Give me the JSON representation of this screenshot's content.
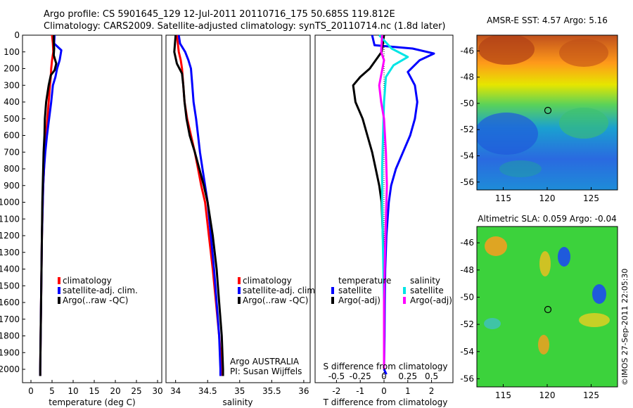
{
  "header": {
    "line1": "Argo profile: CS 5901645_129 12-Jul-2011 20110716_175 50.685S 119.812E",
    "line2": "Climatology: CARS2009. Satellite-adjusted climatology: synTS_20110714.nc (1.8d later)"
  },
  "colors": {
    "climatology": "#ff0000",
    "satellite": "#0000ff",
    "argo": "#000000",
    "sat_salinity": "#00e5e5",
    "argo_salinity": "#ff00ff"
  },
  "depth_ticks": [
    0,
    100,
    200,
    300,
    400,
    500,
    600,
    700,
    800,
    900,
    1000,
    1100,
    1200,
    1300,
    1400,
    1500,
    1600,
    1700,
    1800,
    1900,
    2000
  ],
  "chart_data": [
    {
      "type": "line",
      "xlabel": "temperature (deg C)",
      "ylabel": "",
      "xlim": [
        -2,
        31
      ],
      "ylim": [
        2080,
        0
      ],
      "x_ticks": [
        "0",
        "5",
        "10",
        "15",
        "20",
        "25",
        "30"
      ],
      "legend": [
        "climatology",
        "satellite-adj. clim.",
        "Argo(..raw -QC)"
      ],
      "legend_position": "lower-middle",
      "series": [
        {
          "name": "climatology",
          "color": "#ff0000",
          "points": [
            [
              5,
              0
            ],
            [
              5.2,
              50
            ],
            [
              5.3,
              100
            ],
            [
              5.0,
              150
            ],
            [
              4.8,
              200
            ],
            [
              4.7,
              250
            ],
            [
              4.5,
              300
            ],
            [
              4.2,
              400
            ],
            [
              3.9,
              500
            ],
            [
              3.6,
              600
            ],
            [
              3.3,
              700
            ],
            [
              3.1,
              800
            ],
            [
              2.9,
              900
            ],
            [
              2.8,
              1000
            ],
            [
              2.7,
              1100
            ],
            [
              2.6,
              1200
            ],
            [
              2.5,
              1400
            ],
            [
              2.4,
              1600
            ],
            [
              2.3,
              1800
            ],
            [
              2.2,
              2000
            ],
            [
              2.2,
              2040
            ]
          ]
        },
        {
          "name": "satellite-adj. clim.",
          "color": "#0000ff",
          "points": [
            [
              5.6,
              0
            ],
            [
              5.5,
              50
            ],
            [
              7.2,
              90
            ],
            [
              6.8,
              150
            ],
            [
              6.2,
              200
            ],
            [
              5.8,
              250
            ],
            [
              5.2,
              300
            ],
            [
              4.8,
              400
            ],
            [
              4.3,
              500
            ],
            [
              3.8,
              600
            ],
            [
              3.4,
              700
            ],
            [
              3.1,
              800
            ],
            [
              2.9,
              900
            ],
            [
              2.8,
              1000
            ],
            [
              2.7,
              1100
            ],
            [
              2.6,
              1200
            ],
            [
              2.5,
              1400
            ],
            [
              2.4,
              1600
            ],
            [
              2.3,
              1800
            ],
            [
              2.2,
              2000
            ],
            [
              2.2,
              2040
            ]
          ]
        },
        {
          "name": "Argo(..raw -QC)",
          "color": "#000000",
          "points": [
            [
              5.4,
              0
            ],
            [
              5.4,
              40
            ],
            [
              5.5,
              80
            ],
            [
              5.4,
              120
            ],
            [
              6.0,
              170
            ],
            [
              5.6,
              210
            ],
            [
              4.7,
              240
            ],
            [
              4.2,
              300
            ],
            [
              3.6,
              400
            ],
            [
              3.3,
              500
            ],
            [
              3.2,
              600
            ],
            [
              3.0,
              700
            ],
            [
              2.9,
              800
            ],
            [
              2.8,
              900
            ],
            [
              2.7,
              1000
            ],
            [
              2.6,
              1200
            ],
            [
              2.5,
              1400
            ],
            [
              2.4,
              1600
            ],
            [
              2.3,
              1800
            ],
            [
              2.2,
              2000
            ],
            [
              2.2,
              2040
            ]
          ]
        }
      ]
    },
    {
      "type": "line",
      "xlabel": "salinity",
      "xlim": [
        33.85,
        36.1
      ],
      "ylim": [
        2080,
        0
      ],
      "x_ticks": [
        "34",
        "34.5",
        "35",
        "35.5",
        "36"
      ],
      "legend": [
        "climatology",
        "satellite-adj. clim.",
        "Argo(..raw -QC)"
      ],
      "legend_position": "lower-right",
      "annotations": [
        "Argo AUSTRALIA",
        "PI: Susan Wijffels"
      ],
      "series": [
        {
          "name": "climatology",
          "color": "#ff0000",
          "points": [
            [
              34.02,
              0
            ],
            [
              34.05,
              100
            ],
            [
              34.08,
              150
            ],
            [
              34.1,
              200
            ],
            [
              34.12,
              300
            ],
            [
              34.14,
              400
            ],
            [
              34.18,
              500
            ],
            [
              34.24,
              600
            ],
            [
              34.3,
              700
            ],
            [
              34.35,
              800
            ],
            [
              34.4,
              900
            ],
            [
              34.46,
              1000
            ],
            [
              34.52,
              1200
            ],
            [
              34.58,
              1400
            ],
            [
              34.63,
              1600
            ],
            [
              34.68,
              1800
            ],
            [
              34.72,
              2000
            ],
            [
              34.72,
              2040
            ]
          ]
        },
        {
          "name": "satellite-adj. clim.",
          "color": "#0000ff",
          "points": [
            [
              34.05,
              0
            ],
            [
              34.07,
              50
            ],
            [
              34.15,
              100
            ],
            [
              34.2,
              150
            ],
            [
              34.24,
              200
            ],
            [
              34.26,
              300
            ],
            [
              34.28,
              400
            ],
            [
              34.32,
              500
            ],
            [
              34.35,
              600
            ],
            [
              34.38,
              700
            ],
            [
              34.42,
              800
            ],
            [
              34.46,
              900
            ],
            [
              34.5,
              1000
            ],
            [
              34.55,
              1200
            ],
            [
              34.6,
              1400
            ],
            [
              34.64,
              1600
            ],
            [
              34.68,
              1800
            ],
            [
              34.7,
              2000
            ],
            [
              34.7,
              2040
            ]
          ]
        },
        {
          "name": "Argo(..raw -QC)",
          "color": "#000000",
          "points": [
            [
              34.0,
              0
            ],
            [
              33.98,
              100
            ],
            [
              34.02,
              170
            ],
            [
              34.1,
              230
            ],
            [
              34.12,
              300
            ],
            [
              34.14,
              400
            ],
            [
              34.17,
              500
            ],
            [
              34.22,
              600
            ],
            [
              34.3,
              700
            ],
            [
              34.37,
              800
            ],
            [
              34.44,
              900
            ],
            [
              34.5,
              1000
            ],
            [
              34.58,
              1200
            ],
            [
              34.64,
              1400
            ],
            [
              34.68,
              1600
            ],
            [
              34.72,
              1800
            ],
            [
              34.74,
              2000
            ],
            [
              34.74,
              2040
            ]
          ]
        }
      ]
    },
    {
      "type": "line",
      "xlabel": "T difference from climatology",
      "xlabel2": "S difference from climatology",
      "xlim": [
        -2.9,
        2.9
      ],
      "ylim": [
        2080,
        0
      ],
      "x_ticks": [
        "-2",
        "-1",
        "0",
        "1",
        "2"
      ],
      "x2_ticks": [
        "-0.5",
        "-0.25",
        "0",
        "0.25",
        "0.5"
      ],
      "legend_groups": [
        {
          "title": "temperature",
          "items": [
            "satellite",
            "Argo(-adj)"
          ]
        },
        {
          "title": "salinity",
          "items": [
            "satellite",
            "Argo(-adj)"
          ]
        }
      ],
      "legend_position": "lower-middle",
      "series": [
        {
          "name": "temperature satellite",
          "color": "#0000ff",
          "points": [
            [
              -0.5,
              0
            ],
            [
              -0.4,
              60
            ],
            [
              1.2,
              80
            ],
            [
              2.1,
              110
            ],
            [
              1.5,
              150
            ],
            [
              1.0,
              220
            ],
            [
              1.3,
              300
            ],
            [
              1.4,
              400
            ],
            [
              1.3,
              500
            ],
            [
              1.1,
              600
            ],
            [
              0.8,
              700
            ],
            [
              0.5,
              800
            ],
            [
              0.3,
              900
            ],
            [
              0.2,
              1000
            ],
            [
              0.1,
              1200
            ],
            [
              0.05,
              1400
            ],
            [
              0.03,
              1600
            ],
            [
              0.02,
              1800
            ],
            [
              0.0,
              2000
            ],
            [
              0.1,
              2030
            ]
          ]
        },
        {
          "name": "temperature Argo(-adj)",
          "color": "#000000",
          "points": [
            [
              0,
              0
            ],
            [
              -0.1,
              100
            ],
            [
              -0.6,
              200
            ],
            [
              -1.0,
              250
            ],
            [
              -1.3,
              300
            ],
            [
              -1.2,
              400
            ],
            [
              -0.9,
              500
            ],
            [
              -0.7,
              600
            ],
            [
              -0.5,
              700
            ],
            [
              -0.35,
              800
            ],
            [
              -0.2,
              900
            ],
            [
              -0.1,
              1000
            ],
            [
              -0.05,
              1200
            ],
            [
              0.0,
              1400
            ],
            [
              0.0,
              1600
            ],
            [
              0.0,
              1800
            ],
            [
              0.0,
              2000
            ]
          ]
        },
        {
          "name": "salinity satellite",
          "color": "#00e5e5",
          "points": [
            [
              -0.05,
              0
            ],
            [
              0.08,
              80
            ],
            [
              0.25,
              130
            ],
            [
              0.1,
              180
            ],
            [
              0.02,
              250
            ],
            [
              0.0,
              400
            ],
            [
              -0.01,
              600
            ],
            [
              -0.02,
              800
            ],
            [
              -0.02,
              1000
            ],
            [
              -0.01,
              1300
            ],
            [
              0.0,
              1600
            ],
            [
              0.0,
              2000
            ]
          ]
        },
        {
          "name": "salinity Argo(-adj)",
          "color": "#ff00ff",
          "points": [
            [
              -0.02,
              0
            ],
            [
              -0.03,
              100
            ],
            [
              0.0,
              150
            ],
            [
              -0.05,
              300
            ],
            [
              -0.03,
              400
            ],
            [
              0.0,
              500
            ],
            [
              0.02,
              700
            ],
            [
              0.03,
              900
            ],
            [
              0.02,
              1100
            ],
            [
              0.01,
              1300
            ],
            [
              0.0,
              1600
            ],
            [
              0.0,
              2000
            ]
          ]
        }
      ]
    }
  ],
  "maps": [
    {
      "title": "AMSR-E SST: 4.57 Argo: 5.16",
      "x_ticks": [
        "115",
        "120",
        "125"
      ],
      "y_ticks": [
        "-46",
        "-48",
        "-50",
        "-52",
        "-54",
        "-56"
      ]
    },
    {
      "title": "Altimetric SLA: 0.059 Argo: -0.04",
      "x_ticks": [
        "115",
        "120",
        "125"
      ],
      "y_ticks": [
        "-46",
        "-48",
        "-50",
        "-52",
        "-54",
        "-56"
      ]
    }
  ],
  "credit": "©IMOS 27-Sep-2011 22:05:30"
}
